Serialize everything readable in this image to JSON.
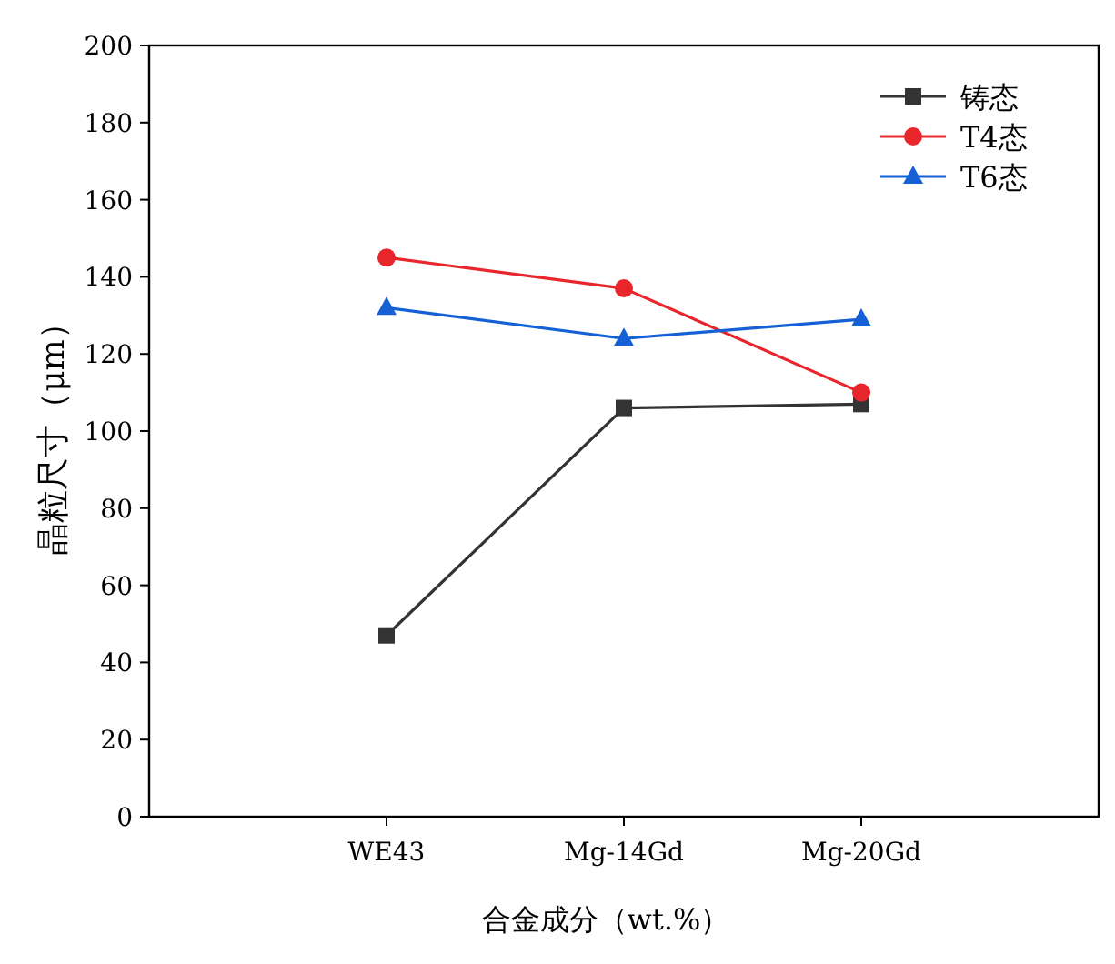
{
  "chart_data": {
    "type": "line",
    "ylabel": "晶粒尺寸（μm）",
    "xlabel": "合金成分（wt.%）",
    "categories": [
      "WE43",
      "Mg-14Gd",
      "Mg-20Gd"
    ],
    "series": [
      {
        "name": "铸态",
        "color": "#333333",
        "marker": "square",
        "values": [
          47,
          106,
          107
        ]
      },
      {
        "name": "T4态",
        "color": "#e8262b",
        "marker": "circle",
        "values": [
          145,
          137,
          110
        ]
      },
      {
        "name": "T6态",
        "color": "#1560d4",
        "marker": "triangle",
        "values": [
          132,
          124,
          129
        ]
      }
    ],
    "ylim": [
      0,
      200
    ],
    "yticks": [
      0,
      20,
      40,
      60,
      80,
      100,
      120,
      140,
      160,
      180,
      200
    ],
    "grid": false,
    "legend": "top right",
    "line_style": "solid"
  }
}
